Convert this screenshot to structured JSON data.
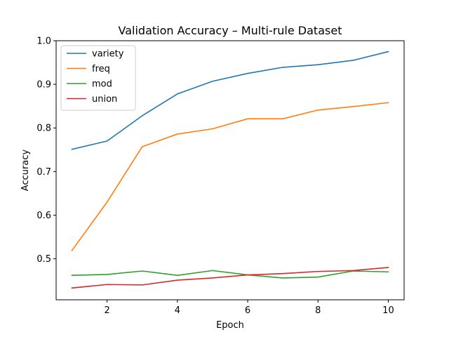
{
  "chart_data": {
    "type": "line",
    "title": "Validation Accuracy – Multi-rule Dataset",
    "xlabel": "Epoch",
    "ylabel": "Accuracy",
    "x": [
      1,
      2,
      3,
      4,
      5,
      6,
      7,
      8,
      9,
      10
    ],
    "xlim": [
      0.55,
      10.45
    ],
    "ylim": [
      0.406,
      1.0
    ],
    "xticks": [
      2,
      4,
      6,
      8,
      10
    ],
    "xtick_labels": [
      "2",
      "4",
      "6",
      "8",
      "10"
    ],
    "yticks": [
      0.5,
      0.6,
      0.7,
      0.8,
      0.9,
      1.0
    ],
    "ytick_labels": [
      "0.5",
      "0.6",
      "0.7",
      "0.8",
      "0.9",
      "1.0"
    ],
    "grid": false,
    "legend_position": "top-left",
    "series": [
      {
        "name": "variety",
        "color": "#1f77b4",
        "values": [
          0.751,
          0.77,
          0.828,
          0.878,
          0.907,
          0.925,
          0.939,
          0.945,
          0.955,
          0.975
        ]
      },
      {
        "name": "freq",
        "color": "#ff7f0e",
        "values": [
          0.519,
          0.63,
          0.757,
          0.786,
          0.798,
          0.821,
          0.821,
          0.841,
          0.849,
          0.858
        ]
      },
      {
        "name": "mod",
        "color": "#2ca02c",
        "values": [
          0.462,
          0.464,
          0.472,
          0.462,
          0.473,
          0.463,
          0.456,
          0.458,
          0.472,
          0.47
        ]
      },
      {
        "name": "union",
        "color": "#d62728",
        "values": [
          0.433,
          0.441,
          0.44,
          0.451,
          0.456,
          0.463,
          0.466,
          0.471,
          0.473,
          0.48
        ]
      }
    ]
  }
}
